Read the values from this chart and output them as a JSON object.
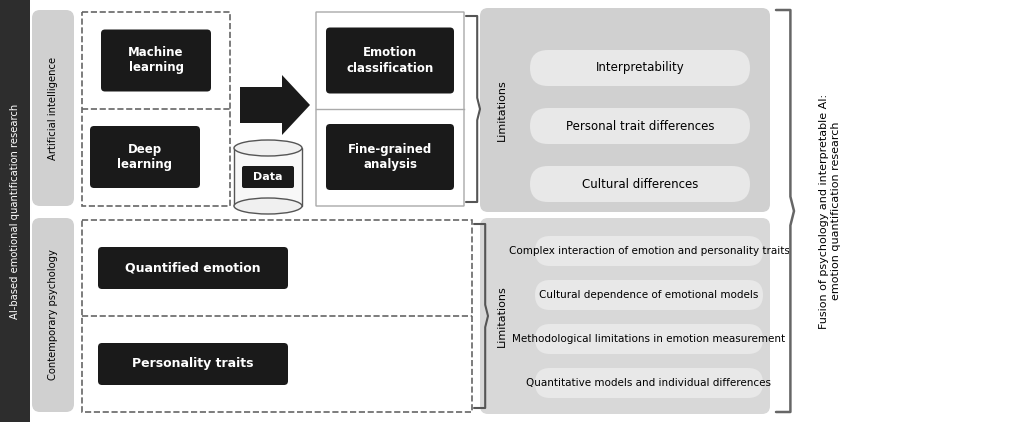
{
  "bg_color": "#ffffff",
  "left_bar_color": "#2d2d2d",
  "left_bar_text": "AI-based emotional quantification research",
  "top_section_label": "Artificial intelligence",
  "bottom_section_label": "Contemporary psychology",
  "top_label_bg": "#d0d0d0",
  "bottom_label_bg": "#d0d0d0",
  "ai_boxes": [
    "Machine\nlearning",
    "Deep\nlearning"
  ],
  "ai_box_bg": "#1a1a1a",
  "ai_box_fg": "#ffffff",
  "data_label": "Data",
  "output_boxes": [
    "Emotion\nclassification",
    "Fine-grained\nanalysis"
  ],
  "output_box_bg": "#1a1a1a",
  "output_box_fg": "#ffffff",
  "top_limitations_bg": "#d0d0d0",
  "top_limitations_pills": [
    "Interpretability",
    "Personal trait differences",
    "Cultural differences"
  ],
  "top_limitations_label": "Limitations",
  "bottom_limitations_bg": "#d8d8d8",
  "bottom_limitations_pills": [
    "Complex interaction of emotion and personality traits",
    "Cultural dependence of emotional models",
    "Methodological limitations in emotion measurement",
    "Quantitative models and individual differences"
  ],
  "bottom_limitations_label": "Limitations",
  "psych_boxes": [
    "Quantified emotion",
    "Personality traits"
  ],
  "psych_box_bg": "#1a1a1a",
  "psych_box_fg": "#ffffff",
  "right_brace_text": "Fusion of psychology and interpretable AI:\nemotion quantification research",
  "pill_bg": "#e8e8e8",
  "pill_border": "#c0c0c0",
  "dashes_color": "#666666",
  "divider_color": "#aaaaaa"
}
